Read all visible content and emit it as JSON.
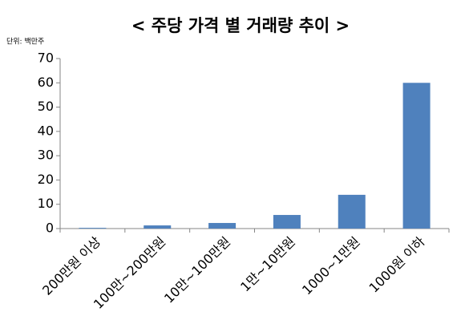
{
  "chart_data": {
    "type": "bar",
    "title": "< 주당 가격 별 거래량 추이 >",
    "unit_label": "단위: 백만주",
    "categories": [
      "200만원 이상",
      "100만~200만원",
      "10만~100만원",
      "1만~10만원",
      "1000~1만원",
      "1000원 이하"
    ],
    "values": [
      0.3,
      1.3,
      2.3,
      5.6,
      13.9,
      60
    ],
    "color": "#4f81bd",
    "ylim": [
      0,
      70
    ],
    "yticks": [
      0,
      10,
      20,
      30,
      40,
      50,
      60,
      70
    ],
    "grid": false
  }
}
